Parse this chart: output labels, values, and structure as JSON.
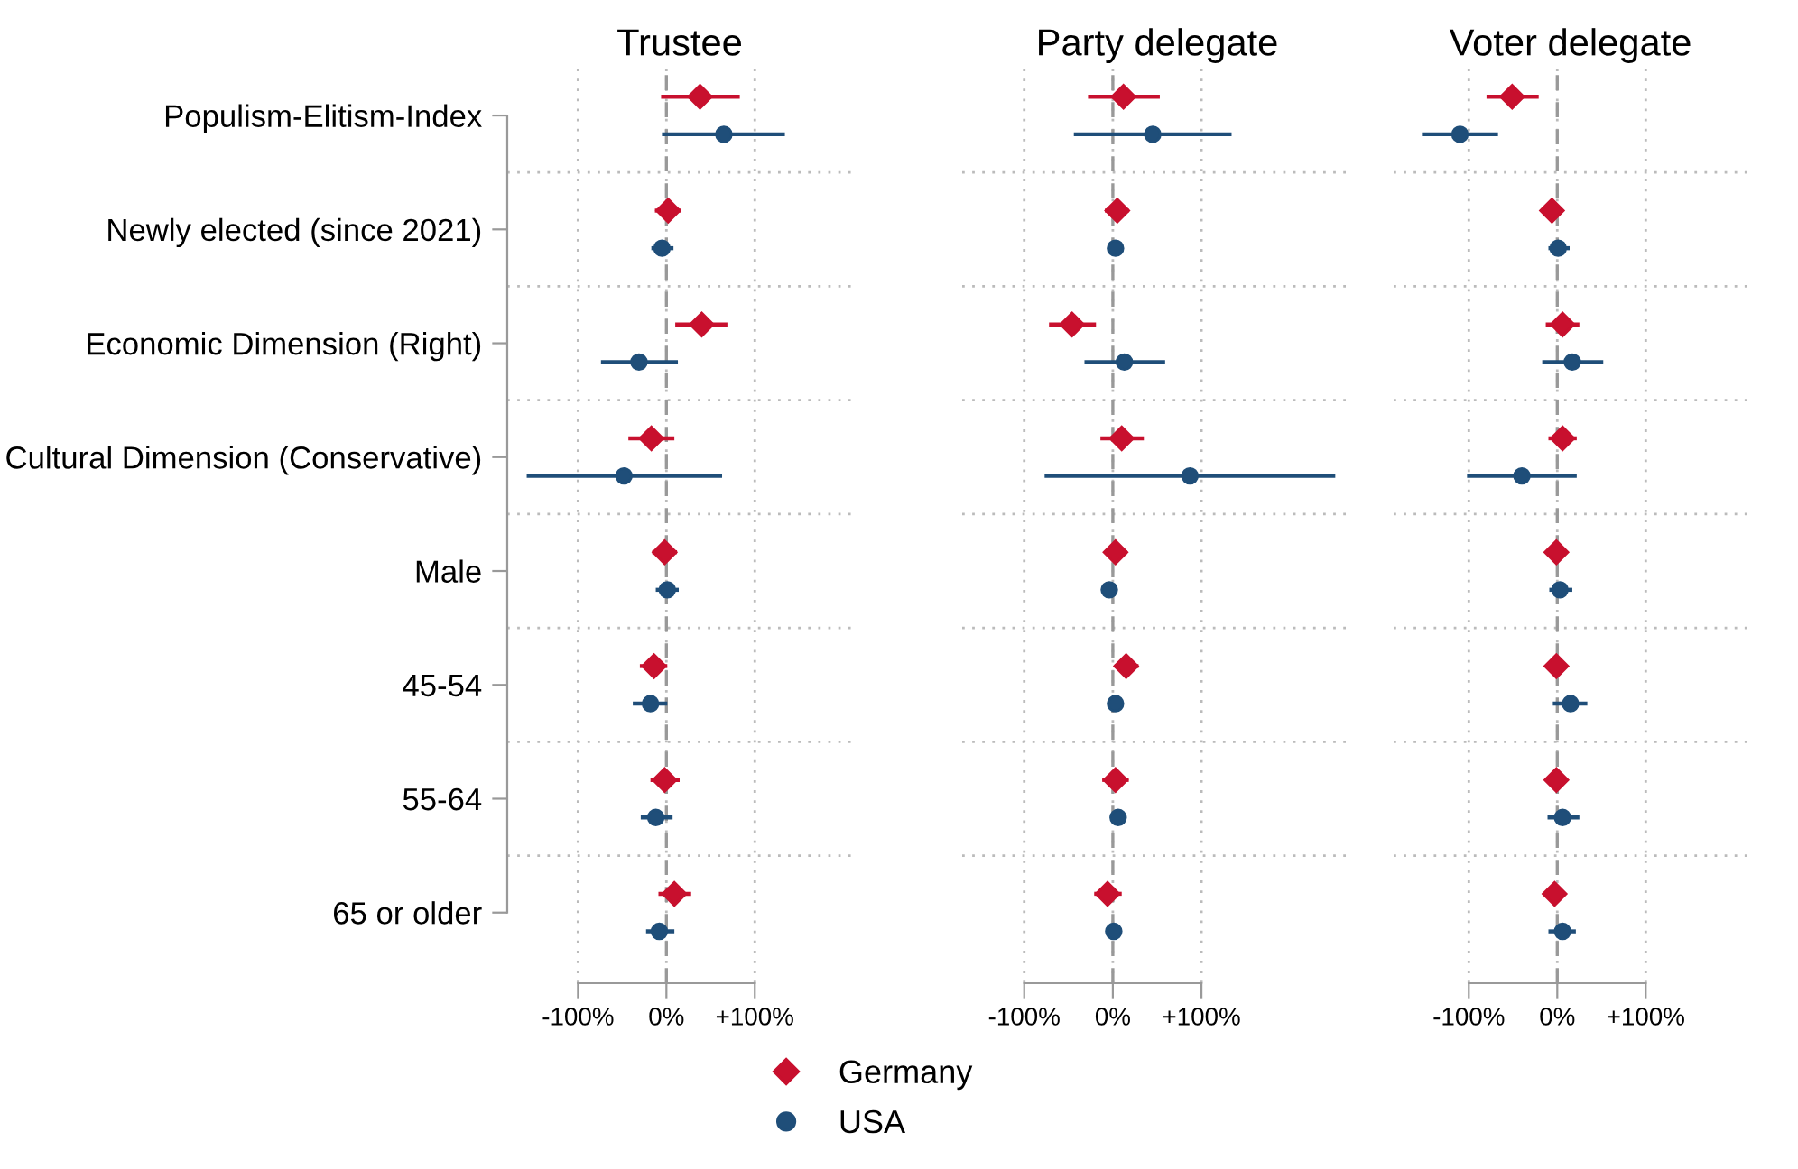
{
  "chart_data": [
    {
      "type": "scatter",
      "orientation": "horizontal",
      "title": "Trustee",
      "categories": [
        "Populism-Elitism-Index",
        "Newly elected (since 2021)",
        "Economic Dimension (Right)",
        "Cultural Dimension (Conservative)",
        "Male",
        "45-54",
        "55-64",
        "65 or older"
      ],
      "legend": "bottom",
      "xlim": [
        -180,
        210
      ],
      "xticks": [
        {
          "value": -100,
          "label": "-100%"
        },
        {
          "value": 0,
          "label": "0%"
        },
        {
          "value": 100,
          "label": "+100%"
        }
      ],
      "grid": true,
      "ref_lines": [
        {
          "axis": "x",
          "value": 0,
          "color": "#999999",
          "line_style": "dashed"
        }
      ],
      "series": [
        {
          "name": "Germany",
          "color": "#c8102e",
          "marker": "diamond",
          "values": [
            38,
            2,
            40,
            -17,
            -2,
            -14,
            -2,
            9
          ],
          "errors": [
            [
              -6,
              83
            ],
            [
              -13,
              17
            ],
            [
              10,
              69
            ],
            [
              -43,
              9
            ],
            [
              -16,
              12
            ],
            [
              -30,
              1
            ],
            [
              -18,
              15
            ],
            [
              -9,
              28
            ]
          ]
        },
        {
          "name": "USA",
          "color": "#1f4e79",
          "marker": "circle",
          "values": [
            65,
            -5,
            -31,
            -48,
            1,
            -18,
            -12,
            -8
          ],
          "errors": [
            [
              -5,
              134
            ],
            [
              -17,
              8
            ],
            [
              -74,
              13
            ],
            [
              -158,
              63
            ],
            [
              -12,
              14
            ],
            [
              -38,
              1
            ],
            [
              -29,
              7
            ],
            [
              -23,
              9
            ]
          ]
        }
      ]
    },
    {
      "type": "scatter",
      "orientation": "horizontal",
      "title": "Party delegate",
      "categories": [
        null,
        null,
        null,
        null,
        null,
        null,
        null,
        null
      ],
      "tick_labels": "x",
      "xlim": [
        -170,
        270
      ],
      "xticks": [
        {
          "value": -100,
          "label": "-100%"
        },
        {
          "value": 0,
          "label": "0%"
        },
        {
          "value": 100,
          "label": "+100%"
        }
      ],
      "grid": true,
      "ref_lines": [
        {
          "axis": "x",
          "value": 0,
          "color": "#999999",
          "line_style": "dashed"
        }
      ],
      "series": [
        {
          "color": "#c8102e",
          "marker": "diamond",
          "values": [
            12,
            5,
            -46,
            10,
            3,
            15,
            3,
            -6
          ],
          "errors": [
            [
              -28,
              53
            ],
            [
              -9,
              18
            ],
            [
              -72,
              -19
            ],
            [
              -14,
              35
            ],
            [
              -8,
              16
            ],
            [
              2,
              29
            ],
            [
              -12,
              18
            ],
            [
              -21,
              10
            ]
          ]
        },
        {
          "color": "#1f4e79",
          "marker": "circle",
          "values": [
            45,
            3,
            13,
            87,
            -4,
            3,
            6,
            1
          ],
          "errors": [
            [
              -44,
              134
            ],
            null,
            [
              -32,
              59
            ],
            [
              -77,
              251
            ],
            null,
            null,
            null,
            null
          ]
        }
      ]
    },
    {
      "type": "scatter",
      "orientation": "horizontal",
      "title": "Voter delegate",
      "categories": [
        null,
        null,
        null,
        null,
        null,
        null,
        null,
        null
      ],
      "tick_labels": "x",
      "xlim": [
        -185,
        215
      ],
      "xticks": [
        {
          "value": -100,
          "label": "-100%"
        },
        {
          "value": 0,
          "label": "0%"
        },
        {
          "value": 100,
          "label": "+100%"
        }
      ],
      "grid": true,
      "ref_lines": [
        {
          "axis": "x",
          "value": 0,
          "color": "#999999",
          "line_style": "dashed"
        }
      ],
      "series": [
        {
          "color": "#c8102e",
          "marker": "diamond",
          "values": [
            -51,
            -6,
            6,
            6,
            -1,
            -1,
            -1,
            -3
          ],
          "errors": [
            [
              -80,
              -21
            ],
            null,
            [
              -13,
              25
            ],
            [
              -10,
              22
            ],
            null,
            null,
            null,
            null
          ]
        },
        {
          "color": "#1f4e79",
          "marker": "circle",
          "values": [
            -110,
            1,
            17,
            -40,
            3,
            15,
            6,
            6
          ],
          "errors": [
            [
              -153,
              -67
            ],
            [
              -10,
              14
            ],
            [
              -17,
              52
            ],
            [
              -102,
              22
            ],
            [
              -9,
              17
            ],
            [
              -5,
              34
            ],
            [
              -11,
              25
            ],
            [
              -10,
              21
            ]
          ]
        }
      ]
    }
  ]
}
